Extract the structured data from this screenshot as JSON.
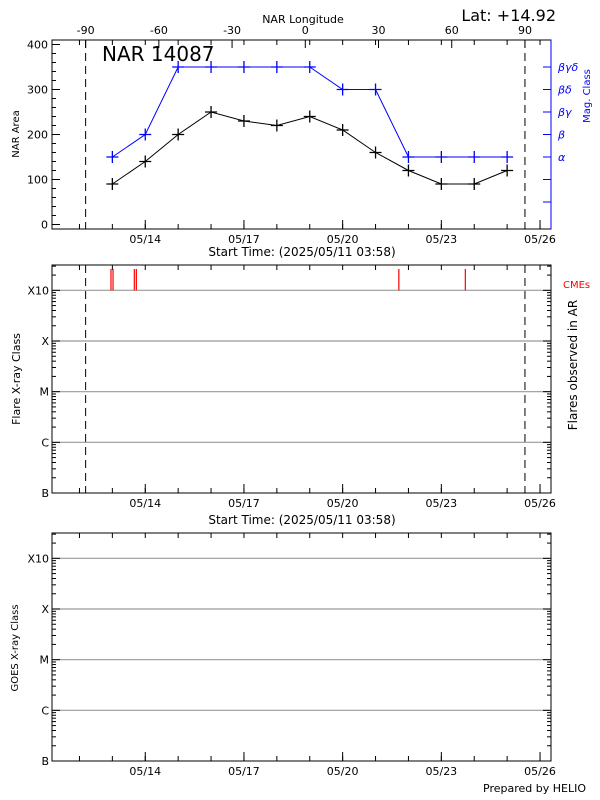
{
  "header": {
    "lat_label": "Lat: +14.92",
    "region_title": "NAR 14087"
  },
  "colors": {
    "axis": "#000000",
    "mag_class": "#0000ff",
    "cme": "#ff0000",
    "grid": "#999999"
  },
  "chart_data": [
    {
      "type": "line",
      "title": "NAR 14087",
      "top_axis_label": "NAR Longitude",
      "top_axis_ticks": [
        -90,
        -60,
        -30,
        0,
        30,
        60,
        90
      ],
      "limb_lines": {
        "longitudes": [
          -90,
          90
        ],
        "dates": [
          "2025-05-12T04:30",
          "2025-05-25T13:00"
        ],
        "style": "dashed"
      },
      "xlabel": "Start Time: (2025/05/11 03:58)",
      "xlim": [
        "2025-05-11T03:58",
        "2025-05-26T08:00"
      ],
      "x_ticks": [
        {
          "date": "2025-05-14T00:00",
          "label": "05/14"
        },
        {
          "date": "2025-05-17T00:00",
          "label": "05/17"
        },
        {
          "date": "2025-05-20T00:00",
          "label": "05/20"
        },
        {
          "date": "2025-05-23T00:00",
          "label": "05/23"
        },
        {
          "date": "2025-05-26T00:00",
          "label": "05/26"
        }
      ],
      "ylabel": "NAR Area",
      "ylim": [
        -10,
        410
      ],
      "y_ticks": [
        0,
        100,
        200,
        300,
        400
      ],
      "y2label": "Mag. Class",
      "y2_ticks": [
        {
          "value": 50,
          "label": ""
        },
        {
          "value": 100,
          "label": ""
        },
        {
          "value": 150,
          "label": "α"
        },
        {
          "value": 200,
          "label": "β"
        },
        {
          "value": 250,
          "label": "βγ"
        },
        {
          "value": 300,
          "label": "βδ"
        },
        {
          "value": 350,
          "label": "βγδ"
        }
      ],
      "x": [
        "2025-05-13T00:00",
        "2025-05-14T00:00",
        "2025-05-15T00:00",
        "2025-05-16T00:00",
        "2025-05-17T00:00",
        "2025-05-18T00:00",
        "2025-05-19T00:00",
        "2025-05-20T00:00",
        "2025-05-21T00:00",
        "2025-05-22T00:00",
        "2025-05-23T00:00",
        "2025-05-24T00:00",
        "2025-05-25T00:00"
      ],
      "series": [
        {
          "name": "NAR Area",
          "color": "#000000",
          "values": [
            90,
            140,
            200,
            250,
            230,
            220,
            240,
            210,
            160,
            120,
            90,
            90,
            120
          ]
        },
        {
          "name": "Mag. Class",
          "color": "#0000ff",
          "values": [
            "α",
            "β",
            "βγδ",
            "βγδ",
            "βγδ",
            "βγδ",
            "βγδ",
            "βδ",
            "βδ",
            "α",
            "α",
            "α",
            "α"
          ]
        }
      ],
      "grid": false
    },
    {
      "type": "scatter",
      "ylabel": "Flare X-ray Class",
      "y2label": "Flares observed in AR",
      "xlabel": "Start Time: (2025/05/11 03:58)",
      "y_ticks": [
        "B",
        "C",
        "M",
        "X",
        "X10"
      ],
      "grid": true,
      "limb_lines": {
        "dates": [
          "2025-05-12T04:30",
          "2025-05-25T13:00"
        ],
        "style": "dashed"
      },
      "flares": [],
      "cme_label": "CMEs",
      "cmes": [
        "2025-05-12T23:00",
        "2025-05-13T00:30",
        "2025-05-13T16:00",
        "2025-05-13T17:30",
        "2025-05-21T17:00",
        "2025-05-23T17:30"
      ]
    },
    {
      "type": "line",
      "ylabel": "GOES X-ray Class",
      "y_ticks": [
        "B",
        "C",
        "M",
        "X",
        "X10"
      ],
      "grid": true,
      "series": []
    }
  ],
  "footer": {
    "credit": "Prepared by HELIO"
  }
}
